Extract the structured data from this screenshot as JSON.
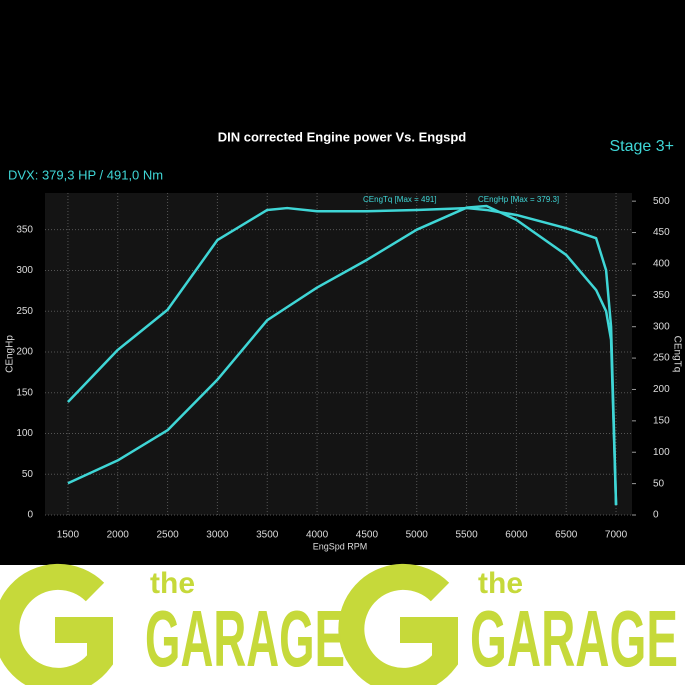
{
  "chart_data": {
    "type": "line",
    "title": "DIN corrected Engine power Vs. Engspd",
    "subtitle": "DVX:  379,3 HP / 491,0 Nm",
    "badge": "Stage 3+",
    "x_label": "EngSpd RPM",
    "y_label": "CEngHp",
    "y2_label": "CEngTq",
    "x": [
      1500,
      2000,
      2500,
      3000,
      3500,
      3700,
      4000,
      4500,
      5000,
      5500,
      5700,
      6000,
      6500,
      6800,
      6900,
      6950,
      7000
    ],
    "series": [
      {
        "name": "CEngHp [Max = 379.3]",
        "color": "#3fd6d6",
        "axis": "y",
        "values": [
          39,
          67,
          104,
          166,
          239,
          255,
          279,
          313,
          350,
          377,
          379,
          362,
          319,
          276,
          250,
          215,
          12
        ]
      },
      {
        "name": "CEngTq [Max = 491]",
        "color": "#3fd6d6",
        "axis": "y2",
        "values": [
          180,
          263,
          327,
          438,
          486,
          489,
          484,
          484,
          486,
          489,
          486,
          478,
          457,
          441,
          390,
          300,
          16
        ]
      }
    ],
    "xlim": [
      1270,
      7160
    ],
    "ylim": [
      0,
      395
    ],
    "y2lim": [
      0,
      513
    ],
    "xticks": [
      1500,
      2000,
      2500,
      3000,
      3500,
      4000,
      4500,
      5000,
      5500,
      6000,
      6500,
      7000
    ],
    "yticks": [
      0,
      50,
      100,
      150,
      200,
      250,
      300,
      350
    ],
    "y2ticks": [
      0,
      50,
      100,
      150,
      200,
      250,
      300,
      350,
      400,
      450,
      500
    ],
    "grid": true
  },
  "branding": {
    "logos": [
      {
        "small": "the",
        "big": "GARAGE"
      },
      {
        "small": "the",
        "big": "GARAGE"
      }
    ]
  }
}
